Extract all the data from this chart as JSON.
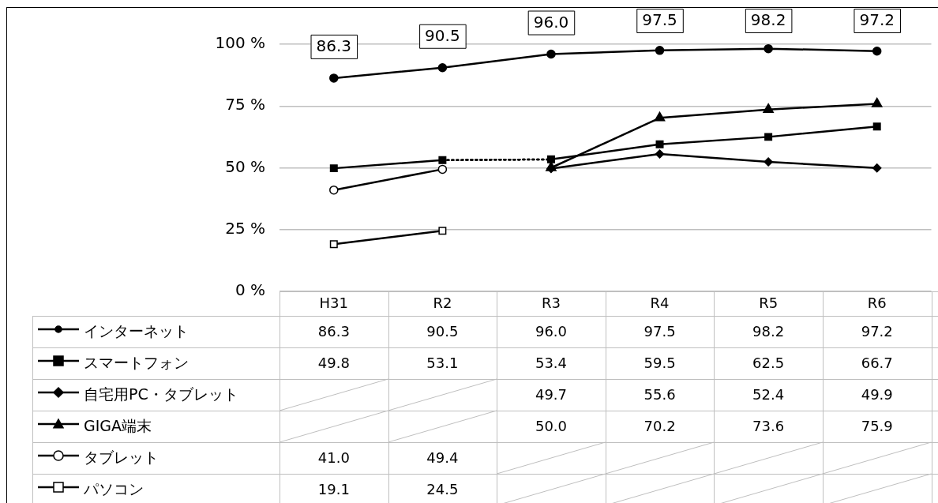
{
  "chart_data": {
    "type": "line",
    "categories": [
      "H31",
      "R2",
      "R3",
      "R4",
      "R5",
      "R6"
    ],
    "ylim": [
      0,
      100
    ],
    "yticks": [
      {
        "value": 0,
        "label": "0 %"
      },
      {
        "value": 25,
        "label": "25 %"
      },
      {
        "value": 50,
        "label": "50 %"
      },
      {
        "value": 75,
        "label": "75 %"
      },
      {
        "value": 100,
        "label": "100 %"
      }
    ],
    "grid": "y",
    "legend": "bottom left",
    "annotations": [
      {
        "text": "86.3",
        "x": "H31",
        "y": 86.3
      },
      {
        "text": "90.5",
        "x": "R2",
        "y": 90.5
      },
      {
        "text": "96.0",
        "x": "R3",
        "y": 96.0
      },
      {
        "text": "97.5",
        "x": "R4",
        "y": 97.5
      },
      {
        "text": "98.2",
        "x": "R5",
        "y": 98.2
      },
      {
        "text": "97.2",
        "x": "R6",
        "y": 97.2
      }
    ],
    "series": [
      {
        "name": "インターネット",
        "color": "#000000",
        "marker": "circle",
        "values": [
          86.3,
          90.5,
          96.0,
          97.5,
          98.2,
          97.2
        ],
        "value_labels": [
          "86.3",
          "90.5",
          "96.0",
          "97.5",
          "98.2",
          "97.2"
        ]
      },
      {
        "name": "スマートフォン",
        "color": "#000000",
        "marker": "square",
        "values": [
          49.8,
          53.1,
          53.4,
          59.5,
          62.5,
          66.7
        ],
        "value_labels": [
          "49.8",
          "53.1",
          "53.4",
          "59.5",
          "62.5",
          "66.7"
        ]
      },
      {
        "name": "自宅用PC・タブレット",
        "color": "#000000",
        "marker": "diamond",
        "values": [
          null,
          null,
          49.7,
          55.6,
          52.4,
          49.9
        ],
        "value_labels": [
          null,
          null,
          "49.7",
          "55.6",
          "52.4",
          "49.9"
        ]
      },
      {
        "name": "GIGA端末",
        "color": "#000000",
        "marker": "triangle",
        "values": [
          null,
          null,
          50.0,
          70.2,
          73.6,
          75.9
        ],
        "value_labels": [
          null,
          null,
          "50.0",
          "70.2",
          "73.6",
          "75.9"
        ]
      },
      {
        "name": "タブレット",
        "color": "#000000",
        "marker": "circle",
        "values": [
          41.0,
          49.4,
          null,
          null,
          null,
          null
        ],
        "value_labels": [
          "41.0",
          "49.4",
          null,
          null,
          null,
          null
        ]
      },
      {
        "name": "パソコン",
        "color": "#000000",
        "marker": "square",
        "values": [
          19.1,
          24.5,
          null,
          null,
          null,
          null
        ],
        "value_labels": [
          "19.1",
          "24.5",
          null,
          null,
          null,
          null
        ]
      },
      {
        "color": "#000000",
        "marker": "none",
        "line_style": "dotted",
        "values": [
          null,
          53.1,
          53.4,
          null,
          null,
          null
        ]
      }
    ]
  }
}
